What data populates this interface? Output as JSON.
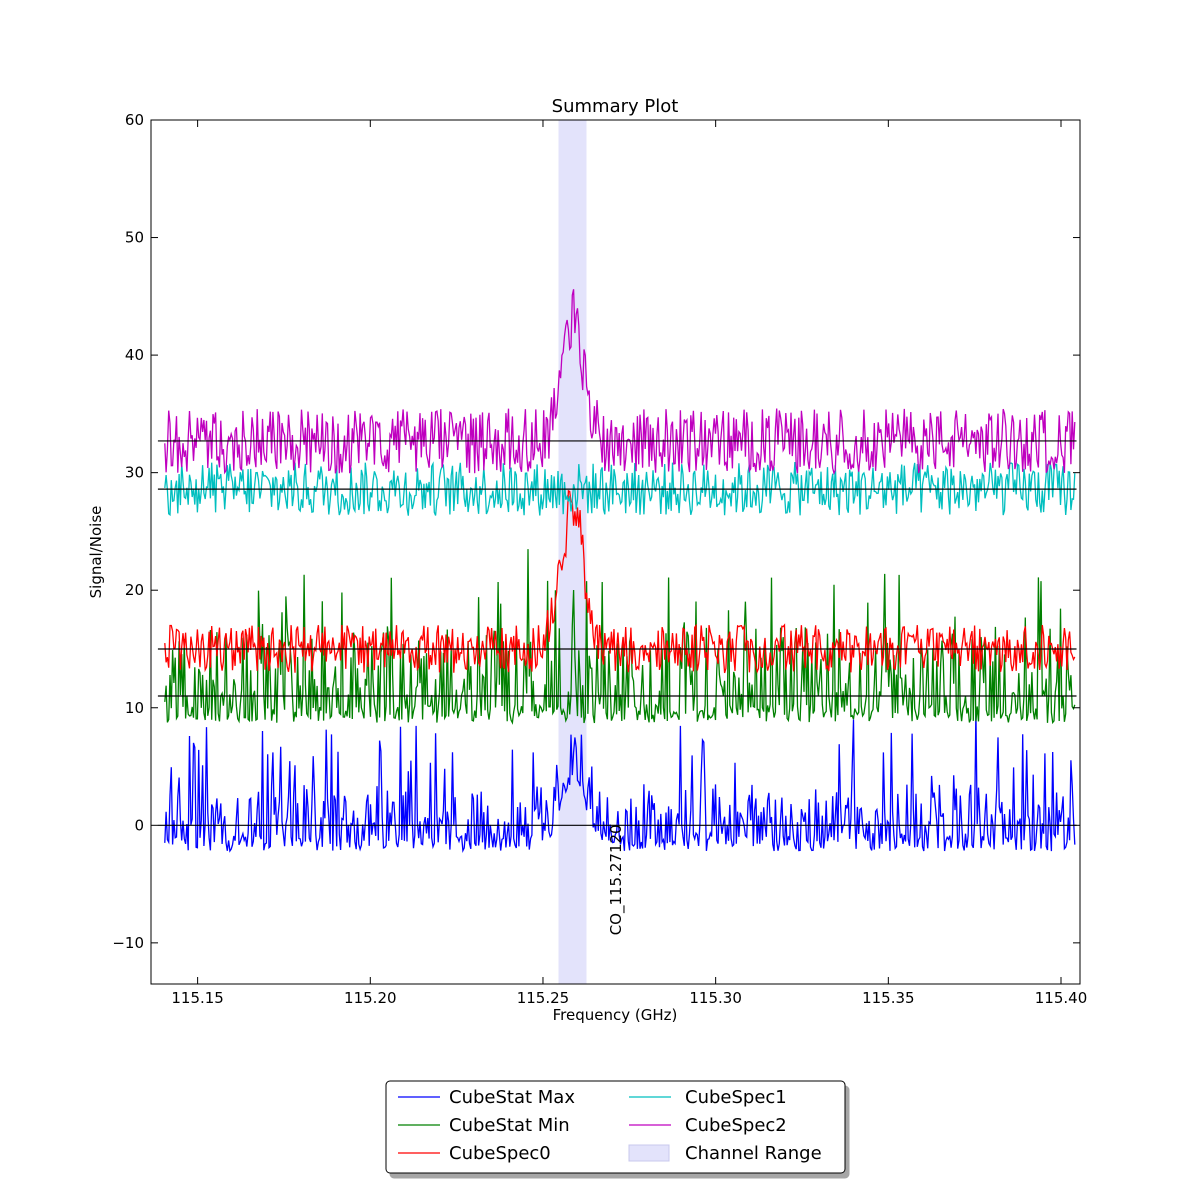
{
  "chart_data": {
    "type": "line",
    "title": "Summary Plot",
    "xlabel": "Frequency (GHz)",
    "ylabel": "Signal/Noise",
    "xlim": [
      115.1365,
      115.4055
    ],
    "ylim": [
      -13.5,
      60
    ],
    "xticks": [
      115.15,
      115.2,
      115.25,
      115.3,
      115.35,
      115.4
    ],
    "xtick_labels": [
      "115.15",
      "115.20",
      "115.25",
      "115.30",
      "115.35",
      "115.40"
    ],
    "yticks": [
      -10,
      0,
      10,
      20,
      30,
      40,
      50,
      60
    ],
    "ytick_labels": [
      "−10",
      "0",
      "10",
      "20",
      "30",
      "40",
      "50",
      "60"
    ],
    "grid": false,
    "legend_placement": "bottom-center",
    "channel_range": {
      "name": "Channel Range",
      "x": [
        115.2545,
        115.2626
      ],
      "color": "#e3e3fb"
    },
    "annotation": {
      "text": "CO_115.27120",
      "x": 115.2712,
      "y": 0
    },
    "series": [
      {
        "name": "CubeStat Max",
        "color": "#0000ff",
        "baseline": 0,
        "noise_low": -2.2,
        "noise_high": 3.5,
        "spike_max": 10,
        "peak": {
          "center": 115.259,
          "height": 6.5,
          "width": 0.0045
        },
        "notable_points": [
          [
            115.1405,
            -1.5
          ],
          [
            115.1478,
            7.6
          ],
          [
            115.2595,
            6.6
          ],
          [
            115.2712,
            -0.6
          ],
          [
            115.34,
            9.0
          ],
          [
            115.3755,
            9.8
          ],
          [
            115.4045,
            -0.8
          ]
        ]
      },
      {
        "name": "CubeStat Min",
        "color": "#008000",
        "baseline": 11.0,
        "noise_low": 8.7,
        "noise_high": 17.0,
        "spike_max": 23.5,
        "peak": null,
        "notable_points": [
          [
            115.1405,
            10.5
          ],
          [
            115.2455,
            23.5
          ],
          [
            115.353,
            21.3
          ],
          [
            115.4045,
            10.0
          ]
        ]
      },
      {
        "name": "CubeSpec0",
        "color": "#ff0000",
        "baseline": 15.0,
        "noise_low": 12.5,
        "noise_high": 17.3,
        "spike_max": 17.3,
        "peak": {
          "center": 115.2585,
          "height": 12.5,
          "width": 0.0045
        },
        "notable_points": [
          [
            115.1405,
            15.5
          ],
          [
            115.2583,
            27.5
          ],
          [
            115.4045,
            14.5
          ]
        ]
      },
      {
        "name": "CubeSpec1",
        "color": "#00bfbf",
        "baseline": 28.6,
        "noise_low": 25.8,
        "noise_high": 31.2,
        "spike_max": 31.2,
        "peak": null,
        "notable_points": [
          [
            115.1405,
            28.7
          ],
          [
            115.4045,
            28.5
          ]
        ]
      },
      {
        "name": "CubeSpec2",
        "color": "#bf00bf",
        "baseline": 32.7,
        "noise_low": 30.0,
        "noise_high": 36.5,
        "spike_max": 36.5,
        "peak": {
          "center": 115.2585,
          "height": 10.5,
          "width": 0.0045
        },
        "notable_points": [
          [
            115.1405,
            32.5
          ],
          [
            115.259,
            45.6
          ],
          [
            115.4045,
            32.0
          ]
        ]
      }
    ]
  }
}
